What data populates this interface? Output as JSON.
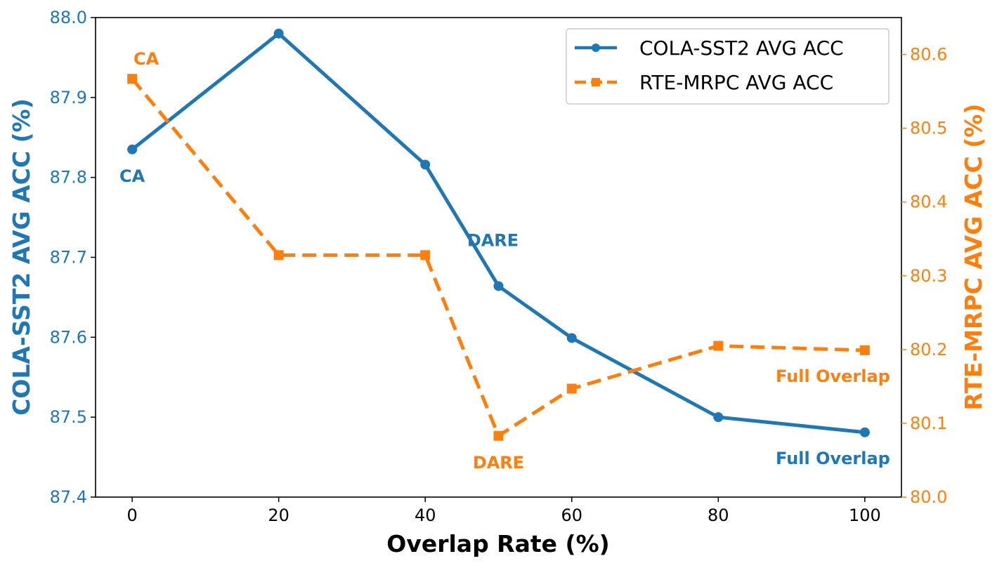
{
  "colors": {
    "left": "#1f77b4",
    "right": "#ff7f0e",
    "axis": "#000000",
    "background": "#ffffff"
  },
  "chart_data": {
    "type": "line",
    "xlabel": "Overlap Rate (%)",
    "ylabel_left": "COLA-SST2 AVG ACC (%)",
    "ylabel_right": "RTE-MRPC AVG ACC (%)",
    "xlim": [
      -5,
      105
    ],
    "ylim_left": [
      87.4,
      88.0
    ],
    "ylim_right": [
      80.0,
      80.65
    ],
    "xticks": [
      0,
      20,
      40,
      60,
      80,
      100
    ],
    "xtick_labels": [
      "0",
      "20",
      "40",
      "60",
      "80",
      "100"
    ],
    "yticks_left": [
      87.4,
      87.5,
      87.6,
      87.7,
      87.8,
      87.9,
      88.0
    ],
    "ytick_labels_left": [
      "87.4",
      "87.5",
      "87.6",
      "87.7",
      "87.8",
      "87.9",
      "88.0"
    ],
    "yticks_right": [
      80.0,
      80.1,
      80.2,
      80.3,
      80.4,
      80.5,
      80.6
    ],
    "ytick_labels_right": [
      "80.0",
      "80.1",
      "80.2",
      "80.3",
      "80.4",
      "80.5",
      "80.6"
    ],
    "grid": false,
    "legend_position": "upper-right",
    "series": [
      {
        "name": "COLA-SST2 AVG ACC",
        "axis": "left",
        "style": "solid",
        "marker": "circle",
        "x": [
          0,
          20,
          40,
          50,
          60,
          80,
          100
        ],
        "y": [
          87.835,
          87.98,
          87.816,
          87.664,
          87.599,
          87.5,
          87.481
        ]
      },
      {
        "name": "RTE-MRPC AVG ACC",
        "axis": "right",
        "style": "dashed",
        "marker": "square",
        "x": [
          0,
          20,
          40,
          50,
          60,
          80,
          100
        ],
        "y": [
          80.567,
          80.328,
          80.328,
          80.083,
          80.147,
          80.205,
          80.199
        ]
      }
    ],
    "annotations": [
      {
        "text": "CA",
        "series": "left",
        "x": 0,
        "y": 87.835,
        "anchor": "below"
      },
      {
        "text": "CA",
        "series": "right",
        "x": 0,
        "y": 80.567,
        "anchor": "above"
      },
      {
        "text": "DARE",
        "series": "left",
        "x": 50,
        "y": 87.664,
        "anchor": "above-left"
      },
      {
        "text": "DARE",
        "series": "right",
        "x": 50,
        "y": 80.083,
        "anchor": "below"
      },
      {
        "text": "Full Overlap",
        "series": "left",
        "x": 100,
        "y": 87.481,
        "anchor": "below-left"
      },
      {
        "text": "Full Overlap",
        "series": "right",
        "x": 100,
        "y": 80.199,
        "anchor": "below-left"
      }
    ]
  }
}
